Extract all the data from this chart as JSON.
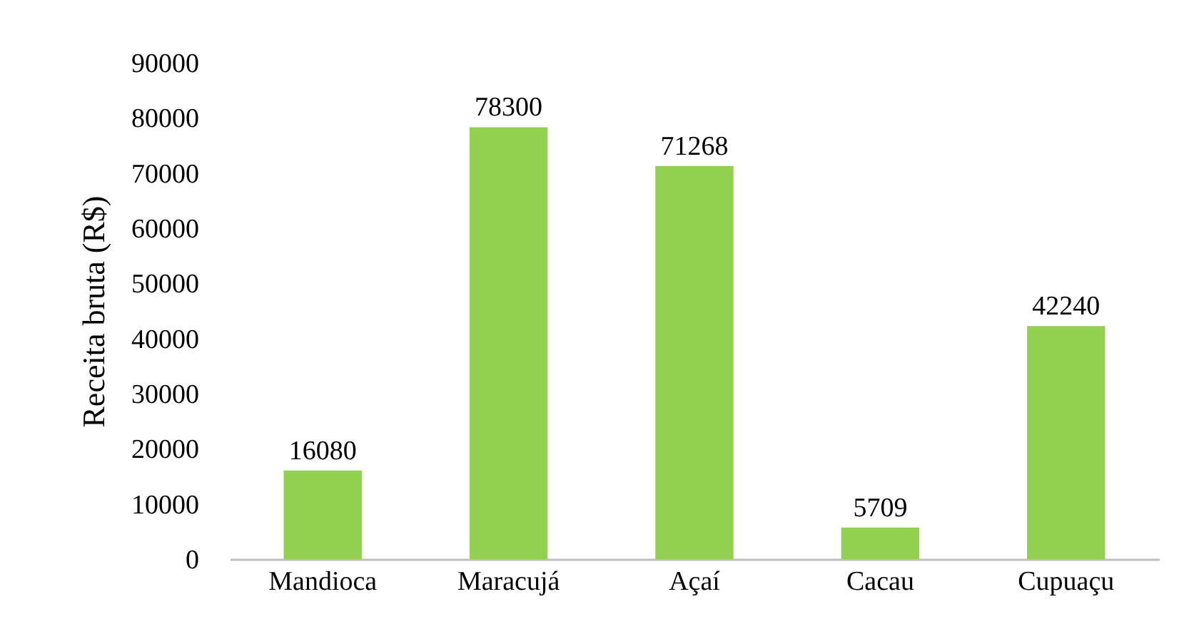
{
  "chart_data": {
    "type": "bar",
    "ylabel": "Receita bruta (R$)",
    "categories": [
      "Mandioca",
      "Maracujá",
      "Açaí",
      "Cacau",
      "Cupuaçu"
    ],
    "values": [
      16080,
      78300,
      71268,
      5709,
      42240
    ],
    "color": "#92d050",
    "ylim": [
      0,
      90000
    ],
    "yticks": [
      0,
      10000,
      20000,
      30000,
      40000,
      50000,
      60000,
      70000,
      80000,
      90000
    ],
    "data_labels": true
  }
}
